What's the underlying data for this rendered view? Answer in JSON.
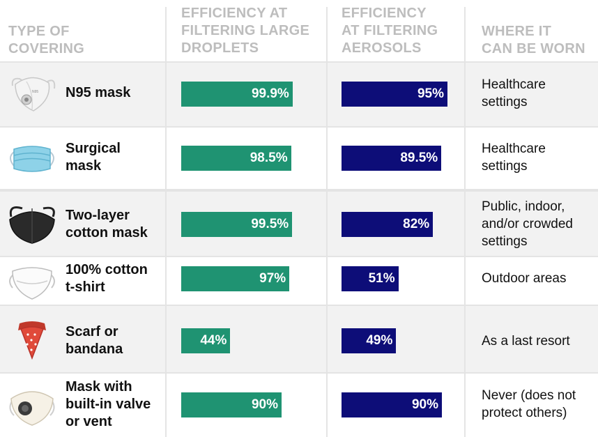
{
  "columns": [
    [
      "TYPE OF",
      "COVERING"
    ],
    [
      "EFFICIENCY AT",
      "FILTERING LARGE",
      "DROPLETS"
    ],
    [
      "EFFICIENCY",
      "AT FILTERING",
      "AEROSOLS"
    ],
    [
      "WHERE IT",
      "CAN BE WORN"
    ]
  ],
  "colors": {
    "droplets": "#1f9372",
    "aerosols": "#0d0d78",
    "header": "#bdbdbd",
    "row_shade": "#f2f2f2"
  },
  "chart_data": {
    "type": "bar",
    "orientation": "horizontal",
    "xlim": [
      0,
      100
    ],
    "categories": [
      "N95 mask",
      "Surgical mask",
      "Two-layer cotton mask",
      "100% cotton t-shirt",
      "Scarf or bandana",
      "Mask with built-in valve or vent"
    ],
    "series": [
      {
        "name": "EFFICIENCY AT FILTERING LARGE DROPLETS",
        "values": [
          99.9,
          98.5,
          99.5,
          97,
          44,
          90
        ],
        "labels": [
          "99.9%",
          "98.5%",
          "99.5%",
          "97%",
          "44%",
          "90%"
        ]
      },
      {
        "name": "EFFICIENCY AT FILTERING AEROSOLS",
        "values": [
          95,
          89.5,
          82,
          51,
          49,
          90
        ],
        "labels": [
          "95%",
          "89.5%",
          "82%",
          "51%",
          "49%",
          "90%"
        ]
      }
    ]
  },
  "rows": [
    {
      "name_lines": [
        "N95 mask"
      ],
      "where_lines": [
        "Healthcare",
        "settings"
      ],
      "icon": "n95-mask-icon"
    },
    {
      "name_lines": [
        "Surgical",
        "mask"
      ],
      "where_lines": [
        "Healthcare",
        "settings"
      ],
      "icon": "surgical-mask-icon"
    },
    {
      "name_lines": [
        "Two-layer",
        "cotton mask"
      ],
      "where_lines": [
        "Public, indoor,",
        "and/or crowded",
        "settings"
      ],
      "icon": "cloth-mask-icon"
    },
    {
      "name_lines": [
        "100% cotton",
        "t-shirt"
      ],
      "where_lines": [
        "Outdoor areas"
      ],
      "icon": "tshirt-mask-icon"
    },
    {
      "name_lines": [
        "Scarf or",
        "bandana"
      ],
      "where_lines": [
        "As a last resort"
      ],
      "icon": "bandana-icon"
    },
    {
      "name_lines": [
        "Mask with",
        "built-in valve",
        "or vent"
      ],
      "where_lines": [
        "Never (does not",
        "protect others)"
      ],
      "icon": "valve-mask-icon"
    }
  ]
}
